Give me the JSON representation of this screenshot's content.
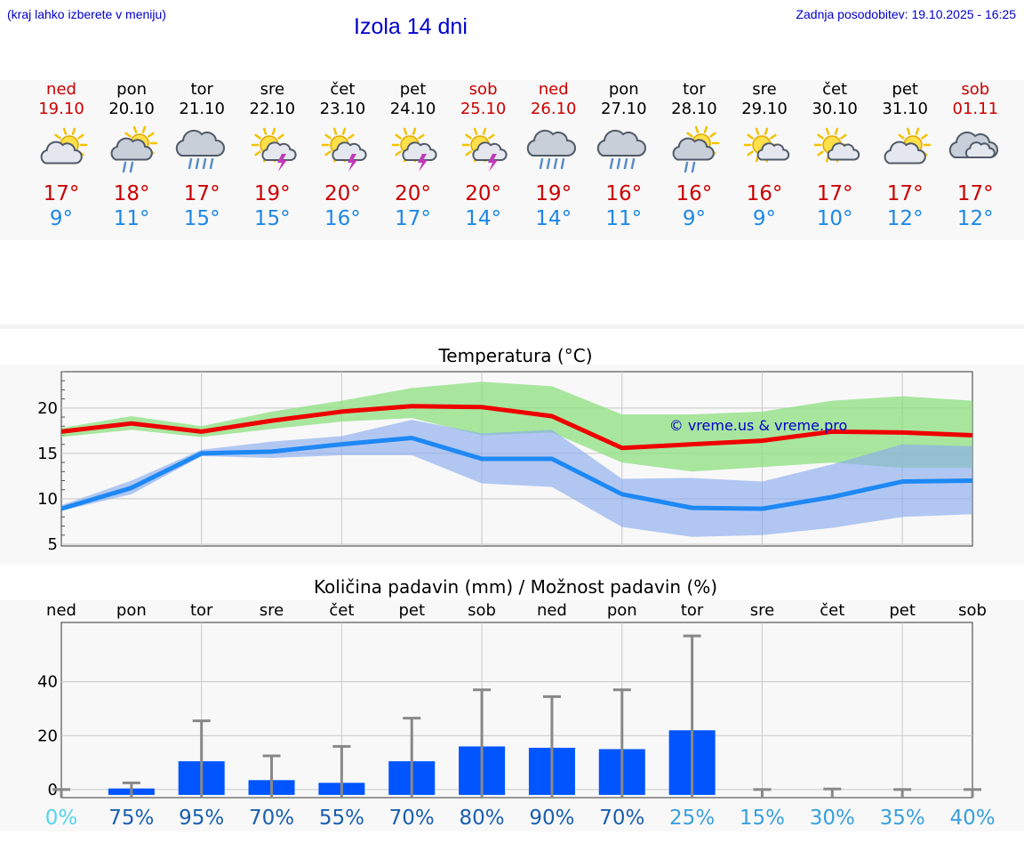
{
  "header": {
    "hint": "(kraj lahko izberete v meniju)",
    "title": "Izola 14 dni",
    "updated": "Zadnja posodobitev: 19.10.2025 - 16:25"
  },
  "days": [
    {
      "name": "ned",
      "date": "19.10",
      "weekend": true,
      "icon": "partly-cloudy-sun-icon",
      "tmax": "17°",
      "tmin": "9°"
    },
    {
      "name": "pon",
      "date": "20.10",
      "weekend": false,
      "icon": "sun-cloud-light-rain-icon",
      "tmax": "18°",
      "tmin": "11°"
    },
    {
      "name": "tor",
      "date": "21.10",
      "weekend": false,
      "icon": "cloud-rain-icon",
      "tmax": "17°",
      "tmin": "15°"
    },
    {
      "name": "sre",
      "date": "22.10",
      "weekend": false,
      "icon": "sun-cloud-thunder-icon",
      "tmax": "19°",
      "tmin": "15°"
    },
    {
      "name": "čet",
      "date": "23.10",
      "weekend": false,
      "icon": "sun-cloud-thunder-icon",
      "tmax": "20°",
      "tmin": "16°"
    },
    {
      "name": "pet",
      "date": "24.10",
      "weekend": false,
      "icon": "sun-cloud-thunder-icon",
      "tmax": "20°",
      "tmin": "17°"
    },
    {
      "name": "sob",
      "date": "25.10",
      "weekend": true,
      "icon": "sun-cloud-thunder-icon",
      "tmax": "20°",
      "tmin": "14°"
    },
    {
      "name": "ned",
      "date": "26.10",
      "weekend": true,
      "icon": "cloud-rain-icon",
      "tmax": "19°",
      "tmin": "14°"
    },
    {
      "name": "pon",
      "date": "27.10",
      "weekend": false,
      "icon": "cloud-rain-icon",
      "tmax": "16°",
      "tmin": "11°"
    },
    {
      "name": "tor",
      "date": "28.10",
      "weekend": false,
      "icon": "sun-cloud-light-rain-icon",
      "tmax": "16°",
      "tmin": "9°"
    },
    {
      "name": "sre",
      "date": "29.10",
      "weekend": false,
      "icon": "sun-small-cloud-icon",
      "tmax": "16°",
      "tmin": "9°"
    },
    {
      "name": "čet",
      "date": "30.10",
      "weekend": false,
      "icon": "sun-small-cloud-icon",
      "tmax": "17°",
      "tmin": "10°"
    },
    {
      "name": "pet",
      "date": "31.10",
      "weekend": false,
      "icon": "partly-cloudy-sun-icon",
      "tmax": "17°",
      "tmin": "12°"
    },
    {
      "name": "sob",
      "date": "01.11",
      "weekend": true,
      "icon": "cloudy-icon",
      "tmax": "17°",
      "tmin": "12°"
    }
  ],
  "colors": {
    "max_line": "#ee0000",
    "min_line": "#1e88f5",
    "max_band": "#8ee080",
    "min_band": "#8aacee",
    "bar": "#0055ff",
    "weekend": "#cc0000",
    "link": "#0000cc"
  },
  "chart_data": [
    {
      "type": "line",
      "title": "Temperatura (°C)",
      "watermark": "© vreme.us & vreme.pro",
      "x": [
        "ned 19.10",
        "pon 20.10",
        "tor 21.10",
        "sre 22.10",
        "čet 23.10",
        "pet 24.10",
        "sob 25.10",
        "ned 26.10",
        "pon 27.10",
        "tor 28.10",
        "sre 29.10",
        "čet 30.10",
        "pet 31.10",
        "sob 01.11"
      ],
      "ylim": [
        4.8,
        24
      ],
      "yticks": [
        5,
        10,
        15,
        20
      ],
      "series": [
        {
          "role": "max",
          "values": [
            17.4,
            18.3,
            17.4,
            18.6,
            19.6,
            20.2,
            20.1,
            19.1,
            15.6,
            16.0,
            16.4,
            17.4,
            17.3,
            17.0
          ],
          "band_low": [
            16.8,
            17.6,
            16.8,
            17.7,
            18.5,
            18.9,
            17.0,
            17.3,
            14.0,
            13.0,
            13.5,
            14.0,
            13.4,
            13.4
          ],
          "band_high": [
            17.8,
            19.1,
            18.0,
            19.6,
            20.8,
            22.2,
            22.9,
            22.4,
            19.3,
            19.3,
            19.6,
            20.8,
            21.3,
            20.8
          ]
        },
        {
          "role": "min",
          "values": [
            8.9,
            11.2,
            15.0,
            15.2,
            16.0,
            16.7,
            14.4,
            14.4,
            10.5,
            9.0,
            8.9,
            10.2,
            11.9,
            12.0
          ],
          "band_low": [
            8.7,
            10.5,
            14.7,
            14.5,
            14.8,
            14.8,
            11.7,
            11.3,
            6.9,
            5.8,
            6.0,
            6.8,
            8.0,
            8.3
          ],
          "band_high": [
            9.3,
            12.0,
            15.4,
            16.3,
            16.9,
            18.7,
            17.2,
            17.6,
            12.2,
            12.3,
            11.9,
            13.8,
            16.0,
            15.8
          ]
        }
      ]
    },
    {
      "type": "bar",
      "title": "Količina padavin (mm) / Možnost padavin (%)",
      "categories": [
        "ned",
        "pon",
        "tor",
        "sre",
        "čet",
        "pet",
        "sob",
        "ned",
        "pon",
        "tor",
        "sre",
        "čet",
        "pet",
        "sob"
      ],
      "values": [
        0,
        0.4,
        10.5,
        3.5,
        2.5,
        10.5,
        16.0,
        15.5,
        15.0,
        22.0,
        0,
        0,
        0,
        0
      ],
      "max_values": [
        0,
        2.5,
        25.5,
        12.5,
        16.0,
        26.5,
        37.0,
        34.5,
        37.0,
        57.0,
        0,
        0.2,
        0,
        0
      ],
      "ylim": [
        -3,
        62
      ],
      "yticks": [
        0,
        20,
        40
      ],
      "probabilities": [
        "0%",
        "75%",
        "95%",
        "70%",
        "55%",
        "70%",
        "80%",
        "90%",
        "70%",
        "25%",
        "15%",
        "30%",
        "35%",
        "40%"
      ],
      "probability_colors": [
        "#55d4ee",
        "#1a5fb0",
        "#1a5fb0",
        "#1a5fb0",
        "#1a5fb0",
        "#1a5fb0",
        "#1a5fb0",
        "#1a5fb0",
        "#1a5fb0",
        "#3aa0dc",
        "#3aa0dc",
        "#3aa0dc",
        "#3aa0dc",
        "#3aa0dc"
      ]
    }
  ]
}
